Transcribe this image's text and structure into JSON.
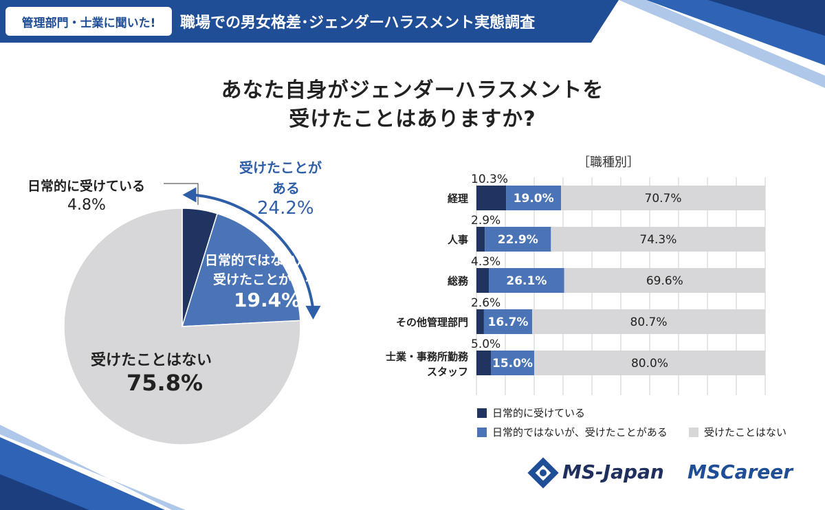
{
  "header": {
    "badge": "管理部門・士業に聞いた!",
    "title": "職場での男女格差･ジェンダーハラスメント実態調査"
  },
  "title": {
    "line1": "あなた自身がジェンダーハラスメントを",
    "line2": "受けたことはありますか?"
  },
  "colors": {
    "header_blue": "#1f4e96",
    "daily": "#1f3460",
    "sometimes": "#4a74b6",
    "never": "#d7d7d9",
    "arrow": "#2f5ea8"
  },
  "pie_labels": {
    "daily_label": "日常的に受けている",
    "daily_value": "4.8%",
    "has_label_line1": "受けたことが",
    "has_label_line2": "ある",
    "has_value": "24.2%",
    "sometimes_label_line1": "日常的ではないが、",
    "sometimes_label_line2": "受けたことがある",
    "sometimes_value": "19.4%",
    "never_label": "受けたことはない",
    "never_value": "75.8%"
  },
  "bar_section": {
    "subtitle": "［職種別］"
  },
  "legend": {
    "daily": "日常的に受けている",
    "sometimes": "日常的ではないが、受けたことがある",
    "never": "受けたことはない"
  },
  "logos": {
    "ms_japan": "MS-Japan",
    "ms_career": "MSCareer"
  },
  "chart_data": [
    {
      "type": "pie",
      "title": "あなた自身がジェンダーハラスメントを受けたことはありますか?",
      "categories": [
        "日常的に受けている",
        "日常的ではないが、受けたことがある",
        "受けたことはない"
      ],
      "values": [
        4.8,
        19.4,
        75.8
      ],
      "unit": "%",
      "start": "12 o'clock",
      "direction": "clockwise"
    },
    {
      "type": "bar",
      "orientation": "horizontal",
      "stacked": true,
      "title": "［職種別］",
      "categories": [
        "経理",
        "人事",
        "総務",
        "その他管理部門",
        "士業・事務所勤務スタッフ"
      ],
      "series": [
        {
          "name": "日常的に受けている",
          "values": [
            10.3,
            2.9,
            4.3,
            2.6,
            5.0
          ]
        },
        {
          "name": "日常的ではないが、受けたことがある",
          "values": [
            19.0,
            22.9,
            26.1,
            16.7,
            15.0
          ]
        },
        {
          "name": "受けたことはない",
          "values": [
            70.7,
            74.3,
            69.6,
            80.7,
            80.0
          ]
        }
      ],
      "xlim": [
        0,
        100
      ],
      "unit": "%",
      "gridlines": true,
      "legend": "bottom"
    }
  ]
}
